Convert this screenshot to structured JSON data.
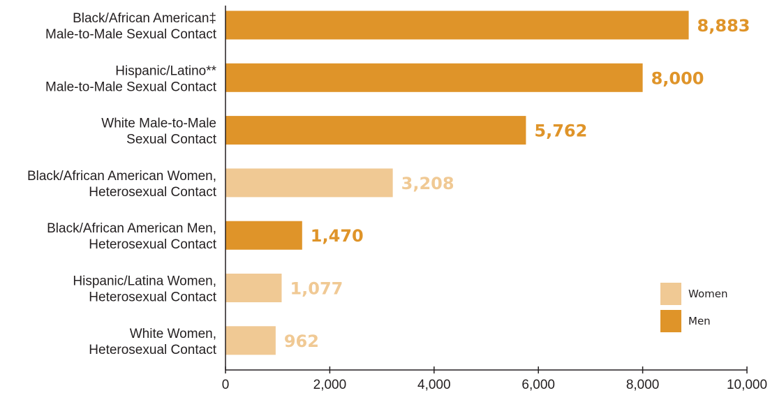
{
  "chart_data": {
    "type": "bar",
    "orientation": "horizontal",
    "categories": [
      [
        "Black/African American‡",
        "Male-to-Male Sexual Contact"
      ],
      [
        "Hispanic/Latino**",
        "Male-to-Male Sexual Contact"
      ],
      [
        "White Male-to-Male",
        "Sexual Contact"
      ],
      [
        "Black/African American Women,",
        "Heterosexual Contact"
      ],
      [
        "Black/African American Men,",
        "Heterosexual Contact"
      ],
      [
        "Hispanic/Latina Women,",
        "Heterosexual Contact"
      ],
      [
        "White Women,",
        "Heterosexual Contact"
      ]
    ],
    "values": [
      8883,
      8000,
      5762,
      3208,
      1470,
      1077,
      962
    ],
    "value_labels": [
      "8,883",
      "8,000",
      "5,762",
      "3,208",
      "1,470",
      "1,077",
      "962"
    ],
    "groups": [
      "Men",
      "Men",
      "Men",
      "Women",
      "Men",
      "Women",
      "Women"
    ],
    "xlim": [
      0,
      10000
    ],
    "xticks": [
      0,
      2000,
      4000,
      6000,
      8000,
      10000
    ],
    "xtick_labels": [
      "0",
      "2,000",
      "4,000",
      "6,000",
      "8,000",
      "10,000"
    ],
    "title": "",
    "xlabel": "",
    "ylabel": "",
    "grid": false,
    "legend": {
      "placement": "bottom-right",
      "entries": [
        {
          "name": "Women",
          "color": "#f0c994"
        },
        {
          "name": "Men",
          "color": "#df9429"
        }
      ]
    },
    "colors": {
      "Men": "#df9429",
      "Women": "#f0c994",
      "axis": "#231f20"
    }
  }
}
